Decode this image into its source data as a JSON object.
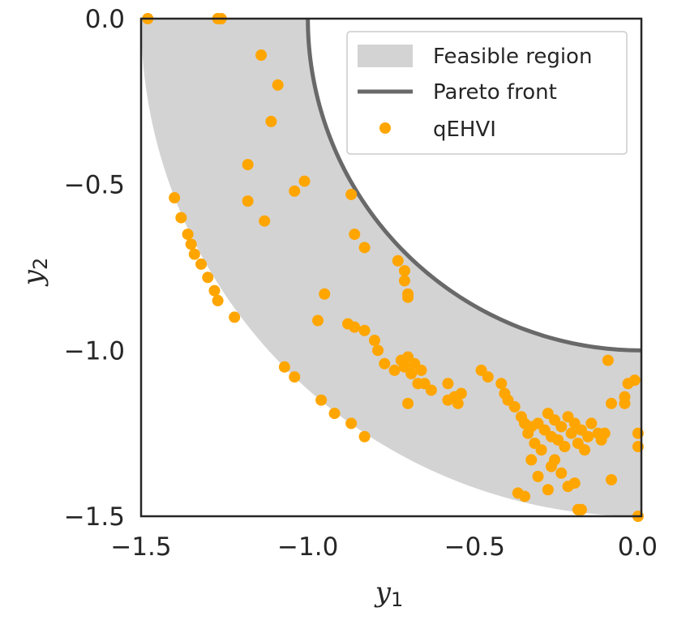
{
  "chart_data": {
    "type": "scatter",
    "title": "",
    "xlabel": "y1",
    "ylabel": "y2",
    "xlim": [
      -1.5,
      0.0
    ],
    "ylim": [
      -1.5,
      0.0
    ],
    "x_ticks": [
      -1.5,
      -1.0,
      -0.5,
      0.0
    ],
    "y_ticks": [
      -1.5,
      -1.0,
      -0.5,
      0.0
    ],
    "x_tick_labels": [
      "−1.5",
      "−1.0",
      "−0.5",
      "0.0"
    ],
    "y_tick_labels": [
      "−1.5",
      "−1.0",
      "−0.5",
      "0.0"
    ],
    "grid": false,
    "legend_position": "top-right",
    "colors": {
      "feasible": "#d3d3d3",
      "front": "#696969",
      "points": "#ffa500",
      "axes": "#262626"
    },
    "feasible_region": {
      "label": "Feasible region",
      "inner_radius": 1.0,
      "outer_radius": 1.5,
      "center": [
        0.0,
        0.0
      ]
    },
    "pareto_front": {
      "label": "Pareto front",
      "radius": 1.0,
      "center": [
        0.0,
        0.0
      ]
    },
    "series": [
      {
        "name": "qEHVI",
        "points": [
          [
            -1.48,
            0.0
          ],
          [
            -1.27,
            0.0
          ],
          [
            -1.26,
            0.0
          ],
          [
            -1.14,
            -0.11
          ],
          [
            -1.09,
            -0.2
          ],
          [
            -1.11,
            -0.31
          ],
          [
            -1.18,
            -0.44
          ],
          [
            -1.18,
            -0.55
          ],
          [
            -1.13,
            -0.61
          ],
          [
            -1.04,
            -0.52
          ],
          [
            -1.01,
            -0.49
          ],
          [
            -1.4,
            -0.54
          ],
          [
            -1.38,
            -0.6
          ],
          [
            -1.36,
            -0.65
          ],
          [
            -1.35,
            -0.68
          ],
          [
            -1.34,
            -0.71
          ],
          [
            -1.32,
            -0.74
          ],
          [
            -1.3,
            -0.78
          ],
          [
            -1.28,
            -0.82
          ],
          [
            -1.27,
            -0.85
          ],
          [
            -1.22,
            -0.9
          ],
          [
            -0.87,
            -0.53
          ],
          [
            -0.86,
            -0.65
          ],
          [
            -0.83,
            -0.69
          ],
          [
            -0.73,
            -0.73
          ],
          [
            -0.71,
            -0.76
          ],
          [
            -0.71,
            -0.79
          ],
          [
            -0.7,
            -0.83
          ],
          [
            -0.7,
            -0.84
          ],
          [
            -0.95,
            -0.83
          ],
          [
            -0.97,
            -0.91
          ],
          [
            -0.88,
            -0.92
          ],
          [
            -0.86,
            -0.93
          ],
          [
            -0.83,
            -0.94
          ],
          [
            -0.8,
            -0.97
          ],
          [
            -0.79,
            -1.0
          ],
          [
            -0.77,
            -1.04
          ],
          [
            -0.74,
            -1.06
          ],
          [
            -0.72,
            -1.03
          ],
          [
            -0.71,
            -1.05
          ],
          [
            -0.7,
            -1.02
          ],
          [
            -0.69,
            -1.07
          ],
          [
            -0.68,
            -1.04
          ],
          [
            -0.67,
            -1.1
          ],
          [
            -0.66,
            -1.06
          ],
          [
            -0.65,
            -1.1
          ],
          [
            -0.7,
            -1.16
          ],
          [
            -0.63,
            -1.12
          ],
          [
            -0.58,
            -1.1
          ],
          [
            -0.58,
            -1.15
          ],
          [
            -0.56,
            -1.14
          ],
          [
            -0.55,
            -1.16
          ],
          [
            -0.54,
            -1.13
          ],
          [
            -0.48,
            -1.06
          ],
          [
            -0.46,
            -1.08
          ],
          [
            -0.42,
            -1.1
          ],
          [
            -0.41,
            -1.13
          ],
          [
            -0.4,
            -1.15
          ],
          [
            -0.38,
            -1.17
          ],
          [
            -0.36,
            -1.2
          ],
          [
            -0.35,
            -1.22
          ],
          [
            -0.34,
            -1.25
          ],
          [
            -0.33,
            -1.23
          ],
          [
            -0.32,
            -1.28
          ],
          [
            -0.31,
            -1.22
          ],
          [
            -0.3,
            -1.3
          ],
          [
            -0.29,
            -1.24
          ],
          [
            -0.28,
            -1.19
          ],
          [
            -0.27,
            -1.26
          ],
          [
            -0.26,
            -1.21
          ],
          [
            -0.25,
            -1.27
          ],
          [
            -0.24,
            -1.23
          ],
          [
            -0.23,
            -1.29
          ],
          [
            -0.22,
            -1.2
          ],
          [
            -0.21,
            -1.25
          ],
          [
            -0.2,
            -1.22
          ],
          [
            -0.19,
            -1.28
          ],
          [
            -0.18,
            -1.24
          ],
          [
            -0.17,
            -1.3
          ],
          [
            -0.16,
            -1.26
          ],
          [
            -0.15,
            -1.22
          ],
          [
            -0.13,
            -1.25
          ],
          [
            -0.12,
            -1.27
          ],
          [
            -0.33,
            -1.33
          ],
          [
            -0.31,
            -1.38
          ],
          [
            -0.27,
            -1.35
          ],
          [
            -0.26,
            -1.33
          ],
          [
            -0.24,
            -1.37
          ],
          [
            -0.28,
            -1.42
          ],
          [
            -0.22,
            -1.41
          ],
          [
            -0.2,
            -1.4
          ],
          [
            -0.37,
            -1.43
          ],
          [
            -0.35,
            -1.44
          ],
          [
            -0.19,
            -1.48
          ],
          [
            -0.18,
            -1.48
          ],
          [
            -0.11,
            -1.25
          ],
          [
            -0.09,
            -1.39
          ],
          [
            -0.1,
            -1.03
          ],
          [
            -0.09,
            -1.16
          ],
          [
            -0.05,
            -1.14
          ],
          [
            -0.05,
            -1.16
          ],
          [
            -0.04,
            -1.1
          ],
          [
            -0.02,
            -1.09
          ],
          [
            -0.01,
            -1.25
          ],
          [
            -0.01,
            -1.29
          ],
          [
            -0.01,
            -1.5
          ],
          [
            -1.07,
            -1.05
          ],
          [
            -1.04,
            -1.08
          ],
          [
            -0.96,
            -1.15
          ],
          [
            -0.92,
            -1.19
          ],
          [
            -0.87,
            -1.22
          ],
          [
            -0.83,
            -1.26
          ]
        ]
      }
    ],
    "legend": [
      "Feasible region",
      "Pareto front",
      "qEHVI"
    ]
  }
}
